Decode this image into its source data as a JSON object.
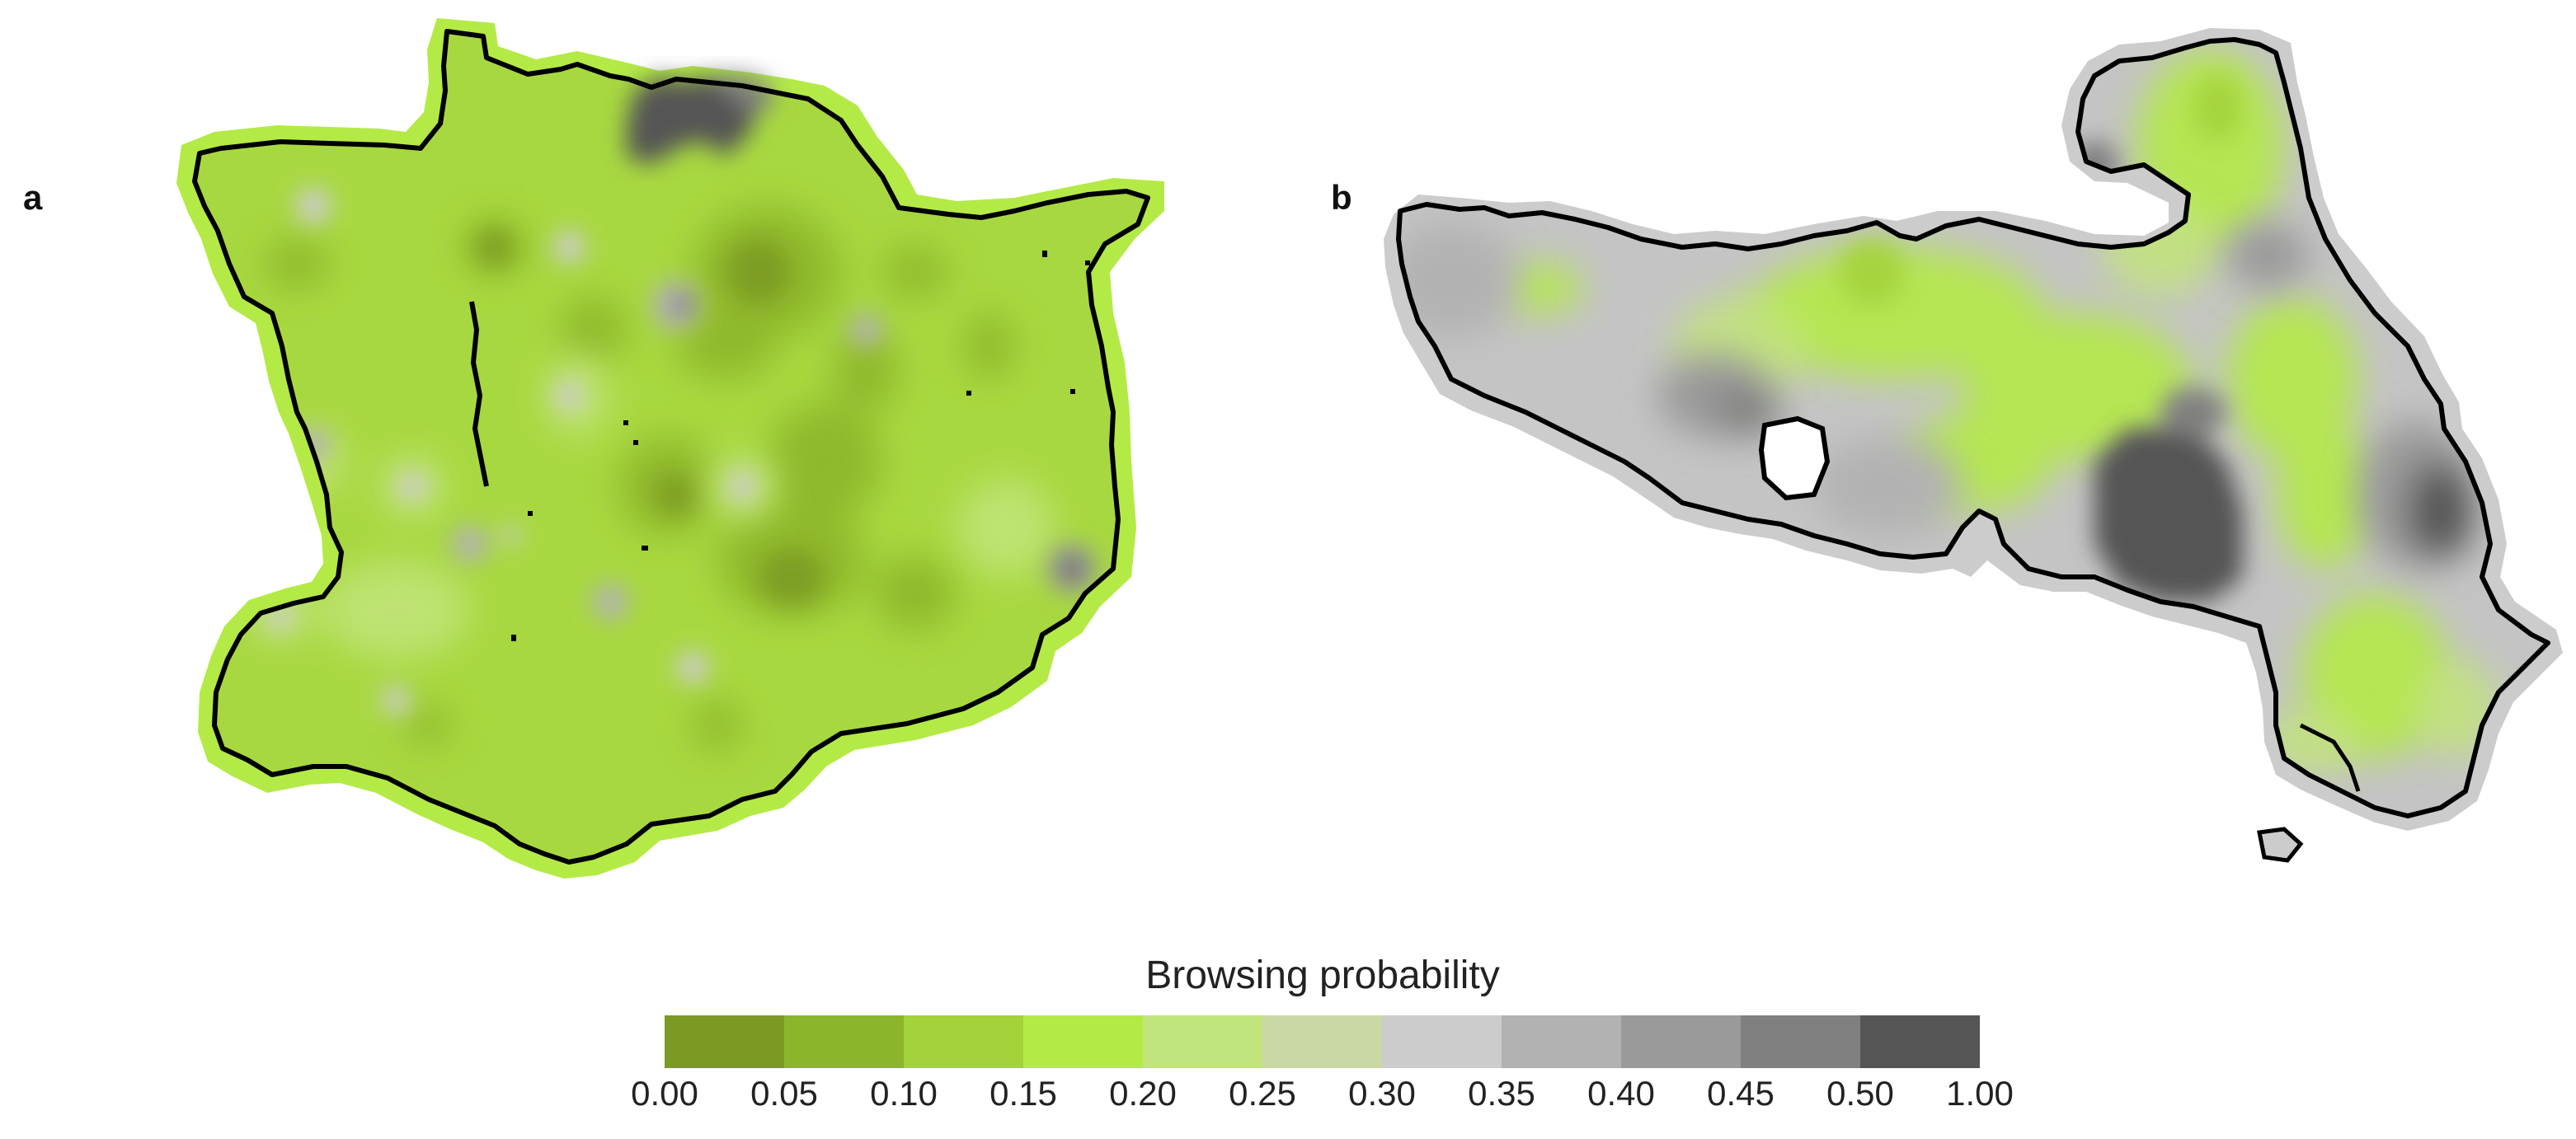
{
  "panels": [
    {
      "label": "a"
    },
    {
      "label": "b"
    }
  ],
  "legend": {
    "title": "Browsing probability",
    "ticks": [
      "0.00",
      "0.05",
      "0.10",
      "0.15",
      "0.20",
      "0.25",
      "0.30",
      "0.35",
      "0.40",
      "0.45",
      "0.50",
      "1.00"
    ],
    "classes": [
      {
        "from": 0.0,
        "to": 0.05,
        "color": "#7a9a24"
      },
      {
        "from": 0.05,
        "to": 0.1,
        "color": "#8db52c"
      },
      {
        "from": 0.1,
        "to": 0.15,
        "color": "#a3d23a"
      },
      {
        "from": 0.15,
        "to": 0.2,
        "color": "#b4ea46"
      },
      {
        "from": 0.2,
        "to": 0.25,
        "color": "#c2e47c"
      },
      {
        "from": 0.25,
        "to": 0.3,
        "color": "#cad8a6"
      },
      {
        "from": 0.3,
        "to": 0.35,
        "color": "#cccccc"
      },
      {
        "from": 0.35,
        "to": 0.4,
        "color": "#b2b2b2"
      },
      {
        "from": 0.4,
        "to": 0.45,
        "color": "#9a9a9a"
      },
      {
        "from": 0.45,
        "to": 0.5,
        "color": "#808080"
      },
      {
        "from": 0.5,
        "to": 1.0,
        "color": "#555555"
      }
    ]
  },
  "styles": {
    "boundary_color": "#000000",
    "region_a_base": "#a8d840",
    "region_a_halo": "#b4ea46",
    "region_b_base": "#c4c4c4",
    "region_b_halo": "#cccccc"
  }
}
